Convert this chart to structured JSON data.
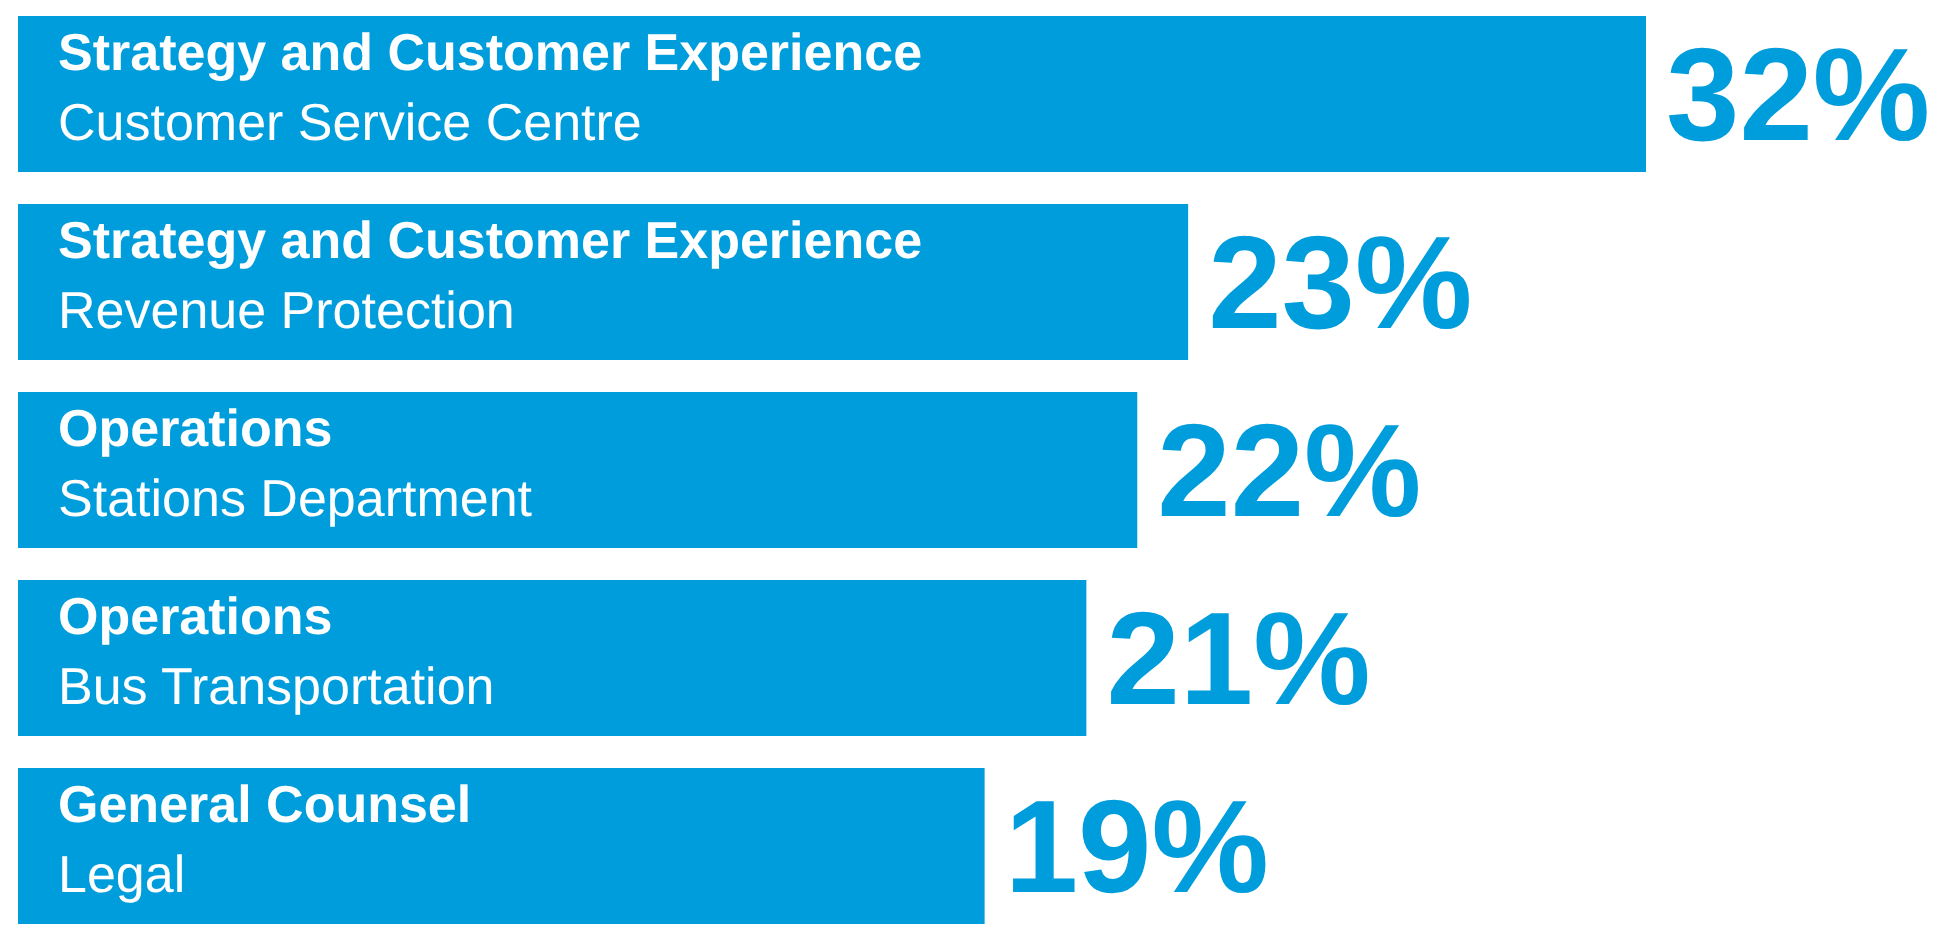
{
  "chart_data": {
    "type": "bar",
    "orientation": "horizontal",
    "categories": [
      "Strategy and Customer Experience\nCustomer Service Centre",
      "Strategy and Customer Experience\nRevenue Protection",
      "Operations\nStations Department",
      "Operations\nBus Transportation",
      "General Counsel\nLegal"
    ],
    "values": [
      32,
      23,
      22,
      21,
      19
    ],
    "value_labels": [
      "32%",
      "23%",
      "22%",
      "21%",
      "19%"
    ],
    "color": "#009ddc"
  }
}
